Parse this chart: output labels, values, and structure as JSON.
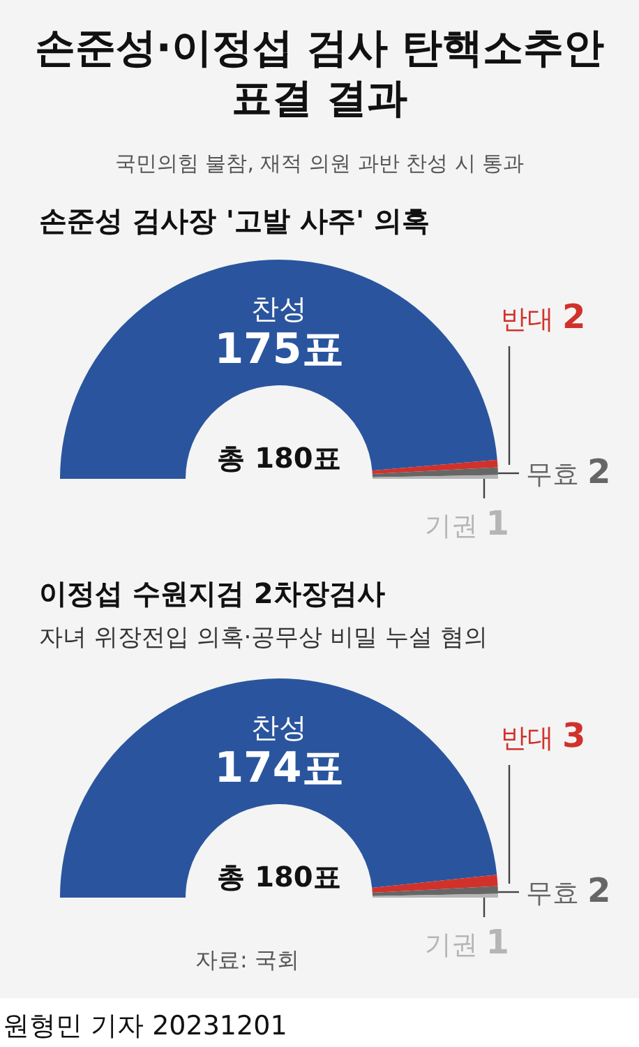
{
  "chart_data": [
    {
      "type": "other",
      "title": "손준성·이정섭 검사 탄핵소추안 표결 결과",
      "subtitle": "국민의힘 불참, 재적 의원 과반 찬성 시 통과"
    },
    {
      "type": "donut",
      "title": "손준성 검사장 '고발 사주' 의혹",
      "categories": [
        "찬성",
        "반대",
        "무효",
        "기권"
      ],
      "values": [
        175,
        2,
        2,
        1
      ],
      "value_labels": [
        "175표",
        "2",
        "2",
        "1"
      ],
      "colors": [
        "#2a559e",
        "#d0322b",
        "#666666",
        "#b5b5b5"
      ],
      "annotations": [
        "총 180표"
      ]
    },
    {
      "type": "donut",
      "title": "이정섭 수원지검 2차장검사",
      "subtitle": "자녀 위장전입 의혹·공무상 비밀 누설 혐의",
      "categories": [
        "찬성",
        "반대",
        "무효",
        "기권"
      ],
      "values": [
        174,
        3,
        2,
        1
      ],
      "value_labels": [
        "174표",
        "3",
        "2",
        "1"
      ],
      "colors": [
        "#2a559e",
        "#d0322b",
        "#666666",
        "#b5b5b5"
      ],
      "annotations": [
        "총 180표",
        "자료: 국회",
        "원형민 기자  20231201"
      ]
    }
  ]
}
